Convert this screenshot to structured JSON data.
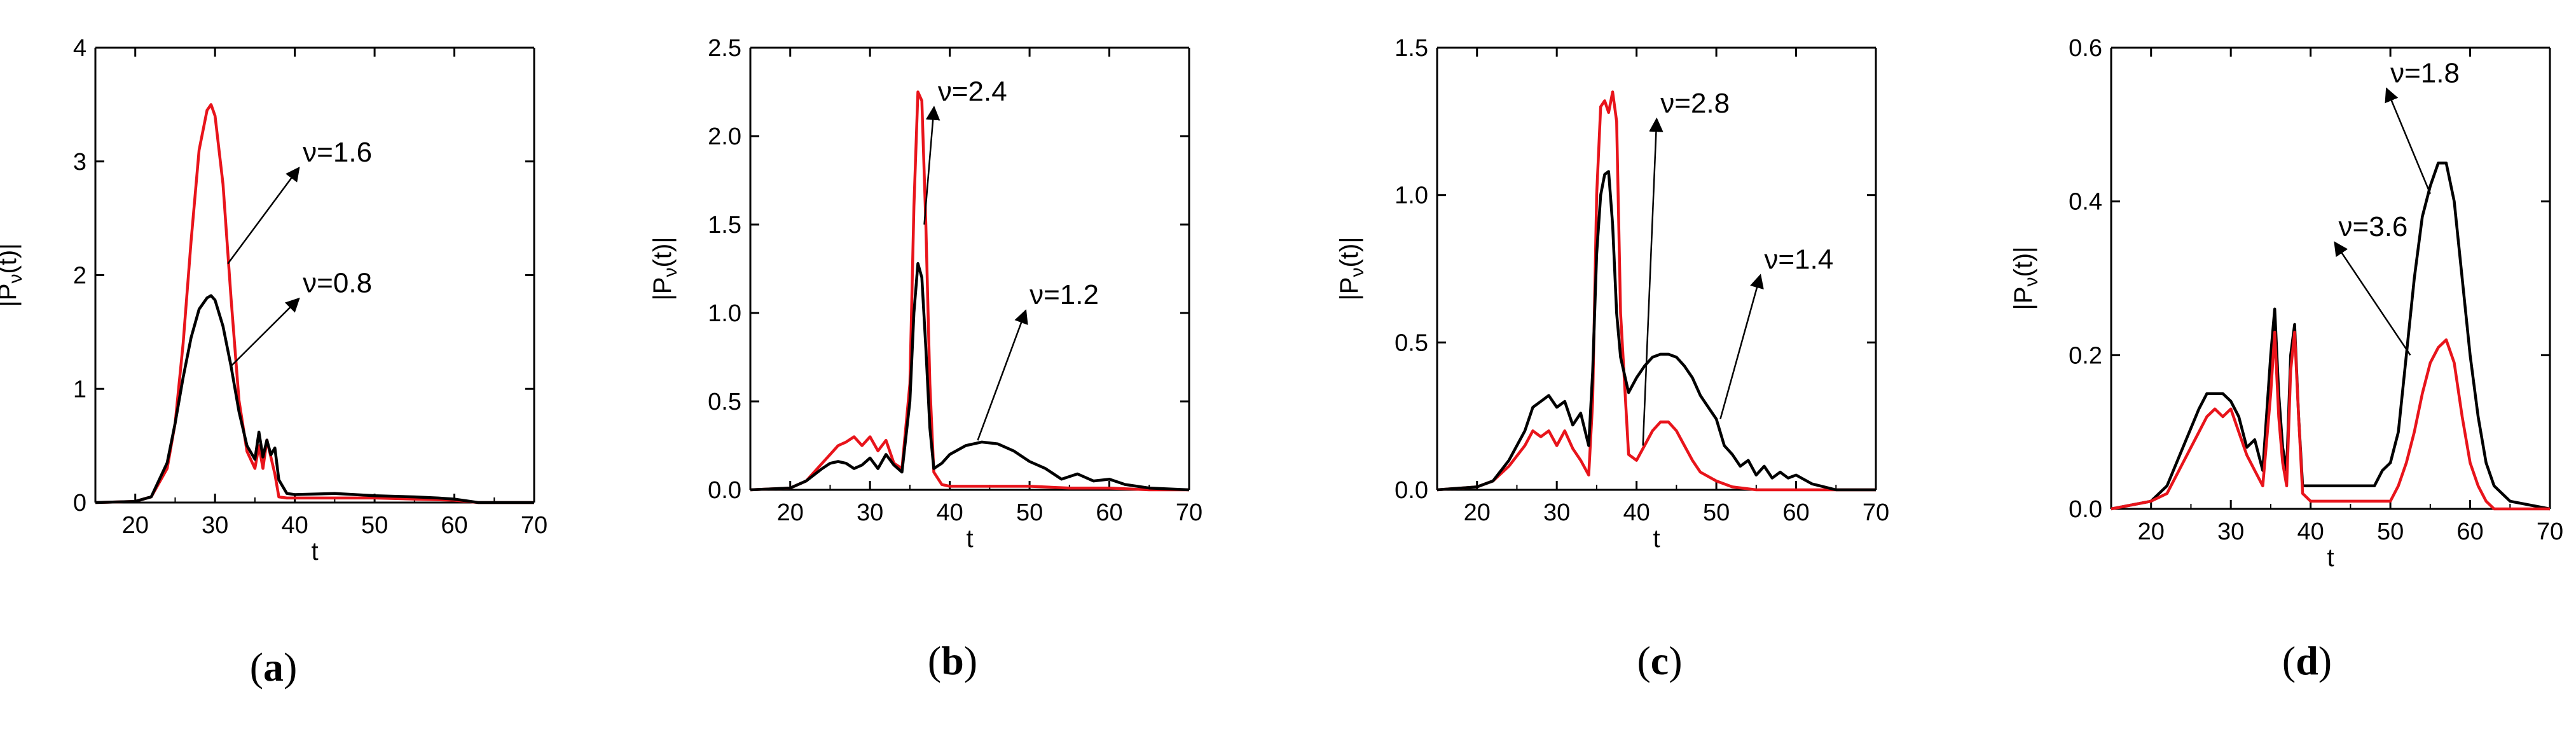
{
  "figure": {
    "panels": [
      "(a)",
      "(b)",
      "(c)",
      "(d)"
    ]
  },
  "chart_data": [
    {
      "type": "line",
      "panel_label": "(a)",
      "xlabel": "t",
      "ylabel": "|P_ν(t)|",
      "xlim": [
        15,
        70
      ],
      "ylim": [
        0,
        4
      ],
      "xticks": [
        20,
        30,
        40,
        50,
        60,
        70
      ],
      "yticks": [
        0,
        1,
        2,
        3,
        4
      ],
      "ytick_labels": [
        "0",
        "1",
        "2",
        "3",
        "4"
      ],
      "series": [
        {
          "name": "ν=1.6",
          "color": "#e8141b",
          "x": [
            15,
            20,
            22,
            24,
            25,
            26,
            27,
            28,
            29,
            29.5,
            30,
            31,
            32,
            33,
            34,
            35,
            35.5,
            36,
            36.5,
            37,
            37.5,
            38,
            39,
            40,
            45,
            50,
            55,
            60,
            63,
            70
          ],
          "y": [
            0,
            0.01,
            0.05,
            0.3,
            0.7,
            1.4,
            2.3,
            3.1,
            3.45,
            3.5,
            3.4,
            2.8,
            1.8,
            0.9,
            0.45,
            0.3,
            0.5,
            0.3,
            0.55,
            0.4,
            0.25,
            0.05,
            0.04,
            0.04,
            0.04,
            0.04,
            0.03,
            0.02,
            0.0,
            0.0
          ]
        },
        {
          "name": "ν=0.8",
          "color": "#000000",
          "x": [
            15,
            20,
            22,
            24,
            25,
            26,
            27,
            28,
            29,
            29.5,
            30,
            31,
            32,
            33,
            34,
            35,
            35.5,
            36,
            36.5,
            37,
            37.5,
            38,
            39,
            40,
            45,
            50,
            55,
            58,
            60,
            63,
            70
          ],
          "y": [
            0,
            0.01,
            0.05,
            0.35,
            0.7,
            1.1,
            1.45,
            1.7,
            1.8,
            1.82,
            1.78,
            1.55,
            1.2,
            0.8,
            0.5,
            0.38,
            0.62,
            0.4,
            0.55,
            0.42,
            0.48,
            0.2,
            0.08,
            0.07,
            0.08,
            0.06,
            0.05,
            0.04,
            0.03,
            0.0,
            0.0
          ]
        }
      ],
      "annotations": [
        {
          "text": "ν=1.6",
          "x": 41,
          "y": 3.0,
          "target_x": 31.6,
          "target_y": 2.1
        },
        {
          "text": "ν=0.8",
          "x": 41,
          "y": 1.85,
          "target_x": 32,
          "target_y": 1.2
        }
      ]
    },
    {
      "type": "line",
      "panel_label": "(b)",
      "xlabel": "t",
      "ylabel": "|P_ν(t)|",
      "xlim": [
        15,
        70
      ],
      "ylim": [
        0,
        2.5
      ],
      "xticks": [
        20,
        30,
        40,
        50,
        60,
        70
      ],
      "yticks": [
        0,
        0.5,
        1.0,
        1.5,
        2.0,
        2.5
      ],
      "ytick_labels": [
        "0.0",
        "0.5",
        "1.0",
        "1.5",
        "2.0",
        "2.5"
      ],
      "series": [
        {
          "name": "ν=2.4",
          "color": "#e8141b",
          "x": [
            15,
            20,
            22,
            24,
            25,
            26,
            27,
            28,
            29,
            30,
            31,
            32,
            33,
            34,
            35,
            35.5,
            36,
            36.5,
            37,
            37.5,
            38,
            39,
            40,
            45,
            50,
            55,
            60,
            65,
            70
          ],
          "y": [
            0,
            0.01,
            0.05,
            0.15,
            0.2,
            0.25,
            0.27,
            0.3,
            0.25,
            0.3,
            0.22,
            0.28,
            0.15,
            0.12,
            0.6,
            1.6,
            2.25,
            2.2,
            1.5,
            0.6,
            0.1,
            0.03,
            0.02,
            0.02,
            0.02,
            0.01,
            0.01,
            0.0,
            0.0
          ]
        },
        {
          "name": "ν=1.2",
          "color": "#000000",
          "x": [
            15,
            20,
            22,
            24,
            25,
            26,
            27,
            28,
            29,
            30,
            31,
            32,
            33,
            34,
            35,
            35.5,
            36,
            36.5,
            37,
            37.5,
            38,
            39,
            40,
            42,
            44,
            46,
            48,
            50,
            52,
            54,
            56,
            58,
            60,
            62,
            65,
            70
          ],
          "y": [
            0,
            0.01,
            0.05,
            0.12,
            0.15,
            0.16,
            0.15,
            0.12,
            0.14,
            0.18,
            0.12,
            0.2,
            0.14,
            0.1,
            0.5,
            1.0,
            1.28,
            1.2,
            0.8,
            0.35,
            0.12,
            0.15,
            0.2,
            0.25,
            0.27,
            0.26,
            0.22,
            0.16,
            0.12,
            0.06,
            0.09,
            0.05,
            0.06,
            0.03,
            0.01,
            0.0
          ]
        }
      ],
      "annotations": [
        {
          "text": "ν=2.4",
          "x": 38.5,
          "y": 2.2,
          "target_x": 36.8,
          "target_y": 1.5
        },
        {
          "text": "ν=1.2",
          "x": 50,
          "y": 1.05,
          "target_x": 43.5,
          "target_y": 0.28
        }
      ]
    },
    {
      "type": "line",
      "panel_label": "(c)",
      "xlabel": "t",
      "ylabel": "|P_ν(t)|",
      "xlim": [
        15,
        70
      ],
      "ylim": [
        0,
        1.5
      ],
      "xticks": [
        20,
        30,
        40,
        50,
        60,
        70
      ],
      "yticks": [
        0,
        0.5,
        1.0,
        1.5
      ],
      "ytick_labels": [
        "0.0",
        "0.5",
        "1.0",
        "1.5"
      ],
      "series": [
        {
          "name": "ν=2.8",
          "color": "#e8141b",
          "x": [
            15,
            20,
            22,
            24,
            26,
            27,
            28,
            29,
            30,
            31,
            32,
            33,
            34,
            34.5,
            35,
            35.5,
            36,
            36.5,
            37,
            37.5,
            38,
            39,
            40,
            41,
            42,
            43,
            44,
            45,
            46,
            47,
            48,
            50,
            52,
            55,
            60,
            70
          ],
          "y": [
            0,
            0.01,
            0.03,
            0.08,
            0.15,
            0.2,
            0.18,
            0.2,
            0.15,
            0.2,
            0.14,
            0.1,
            0.05,
            0.3,
            1.0,
            1.3,
            1.32,
            1.28,
            1.35,
            1.25,
            0.6,
            0.12,
            0.1,
            0.15,
            0.2,
            0.23,
            0.23,
            0.2,
            0.15,
            0.1,
            0.06,
            0.03,
            0.01,
            0.0,
            0.0,
            0.0
          ]
        },
        {
          "name": "ν=1.4",
          "color": "#000000",
          "x": [
            15,
            20,
            22,
            24,
            26,
            27,
            28,
            29,
            30,
            31,
            32,
            33,
            34,
            34.5,
            35,
            35.5,
            36,
            36.5,
            37,
            37.5,
            38,
            39,
            40,
            41,
            42,
            43,
            44,
            45,
            46,
            47,
            48,
            49,
            50,
            51,
            52,
            53,
            54,
            55,
            56,
            57,
            58,
            59,
            60,
            62,
            65,
            70
          ],
          "y": [
            0,
            0.01,
            0.03,
            0.1,
            0.2,
            0.28,
            0.3,
            0.32,
            0.28,
            0.3,
            0.22,
            0.26,
            0.15,
            0.4,
            0.8,
            1.0,
            1.07,
            1.08,
            0.9,
            0.6,
            0.45,
            0.33,
            0.38,
            0.42,
            0.45,
            0.46,
            0.46,
            0.45,
            0.42,
            0.38,
            0.32,
            0.28,
            0.24,
            0.15,
            0.12,
            0.08,
            0.1,
            0.05,
            0.08,
            0.04,
            0.06,
            0.04,
            0.05,
            0.02,
            0.0,
            0.0
          ]
        }
      ],
      "annotations": [
        {
          "text": "ν=2.8",
          "x": 43,
          "y": 1.28,
          "target_x": 40.8,
          "target_y": 0.15
        },
        {
          "text": "ν=1.4",
          "x": 56,
          "y": 0.75,
          "target_x": 50.5,
          "target_y": 0.24
        }
      ]
    },
    {
      "type": "line",
      "panel_label": "(d)",
      "xlabel": "t",
      "ylabel": "|P_ν(t)|",
      "xlim": [
        15,
        70
      ],
      "ylim": [
        0,
        0.6
      ],
      "xticks": [
        20,
        30,
        40,
        50,
        60,
        70
      ],
      "yticks": [
        0,
        0.2,
        0.4,
        0.6
      ],
      "ytick_labels": [
        "0.0",
        "0.2",
        "0.4",
        "0.6"
      ],
      "series": [
        {
          "name": "ν=1.8",
          "color": "#000000",
          "x": [
            15,
            20,
            22,
            24,
            26,
            27,
            28,
            29,
            30,
            31,
            32,
            33,
            34,
            35,
            35.5,
            36,
            36.5,
            37,
            37.5,
            38,
            38.5,
            39,
            40,
            45,
            48,
            49,
            50,
            51,
            52,
            53,
            54,
            55,
            56,
            57,
            58,
            59,
            60,
            61,
            62,
            63,
            65,
            70
          ],
          "y": [
            0,
            0.01,
            0.03,
            0.08,
            0.13,
            0.15,
            0.15,
            0.15,
            0.14,
            0.12,
            0.08,
            0.09,
            0.05,
            0.2,
            0.26,
            0.15,
            0.08,
            0.05,
            0.2,
            0.24,
            0.12,
            0.03,
            0.03,
            0.03,
            0.03,
            0.05,
            0.06,
            0.1,
            0.2,
            0.3,
            0.38,
            0.42,
            0.45,
            0.45,
            0.4,
            0.3,
            0.2,
            0.12,
            0.06,
            0.03,
            0.01,
            0.0
          ]
        },
        {
          "name": "ν=3.6",
          "color": "#e8141b",
          "x": [
            15,
            20,
            22,
            24,
            26,
            27,
            28,
            29,
            30,
            31,
            32,
            33,
            34,
            35,
            35.5,
            36,
            36.5,
            37,
            37.5,
            38,
            38.5,
            39,
            40,
            45,
            48,
            50,
            51,
            52,
            53,
            54,
            55,
            56,
            57,
            58,
            59,
            60,
            61,
            62,
            63,
            65,
            70
          ],
          "y": [
            0,
            0.01,
            0.02,
            0.06,
            0.1,
            0.12,
            0.13,
            0.12,
            0.13,
            0.1,
            0.07,
            0.05,
            0.03,
            0.15,
            0.23,
            0.12,
            0.06,
            0.03,
            0.18,
            0.23,
            0.12,
            0.02,
            0.01,
            0.01,
            0.01,
            0.01,
            0.03,
            0.06,
            0.1,
            0.15,
            0.19,
            0.21,
            0.22,
            0.19,
            0.12,
            0.06,
            0.03,
            0.01,
            0.0,
            0.0,
            0.0
          ]
        }
      ],
      "annotations": [
        {
          "text": "ν=1.8",
          "x": 50,
          "y": 0.555,
          "target_x": 55,
          "target_y": 0.41
        },
        {
          "text": "ν=3.6",
          "x": 43.5,
          "y": 0.355,
          "target_x": 52.5,
          "target_y": 0.2
        }
      ]
    }
  ]
}
